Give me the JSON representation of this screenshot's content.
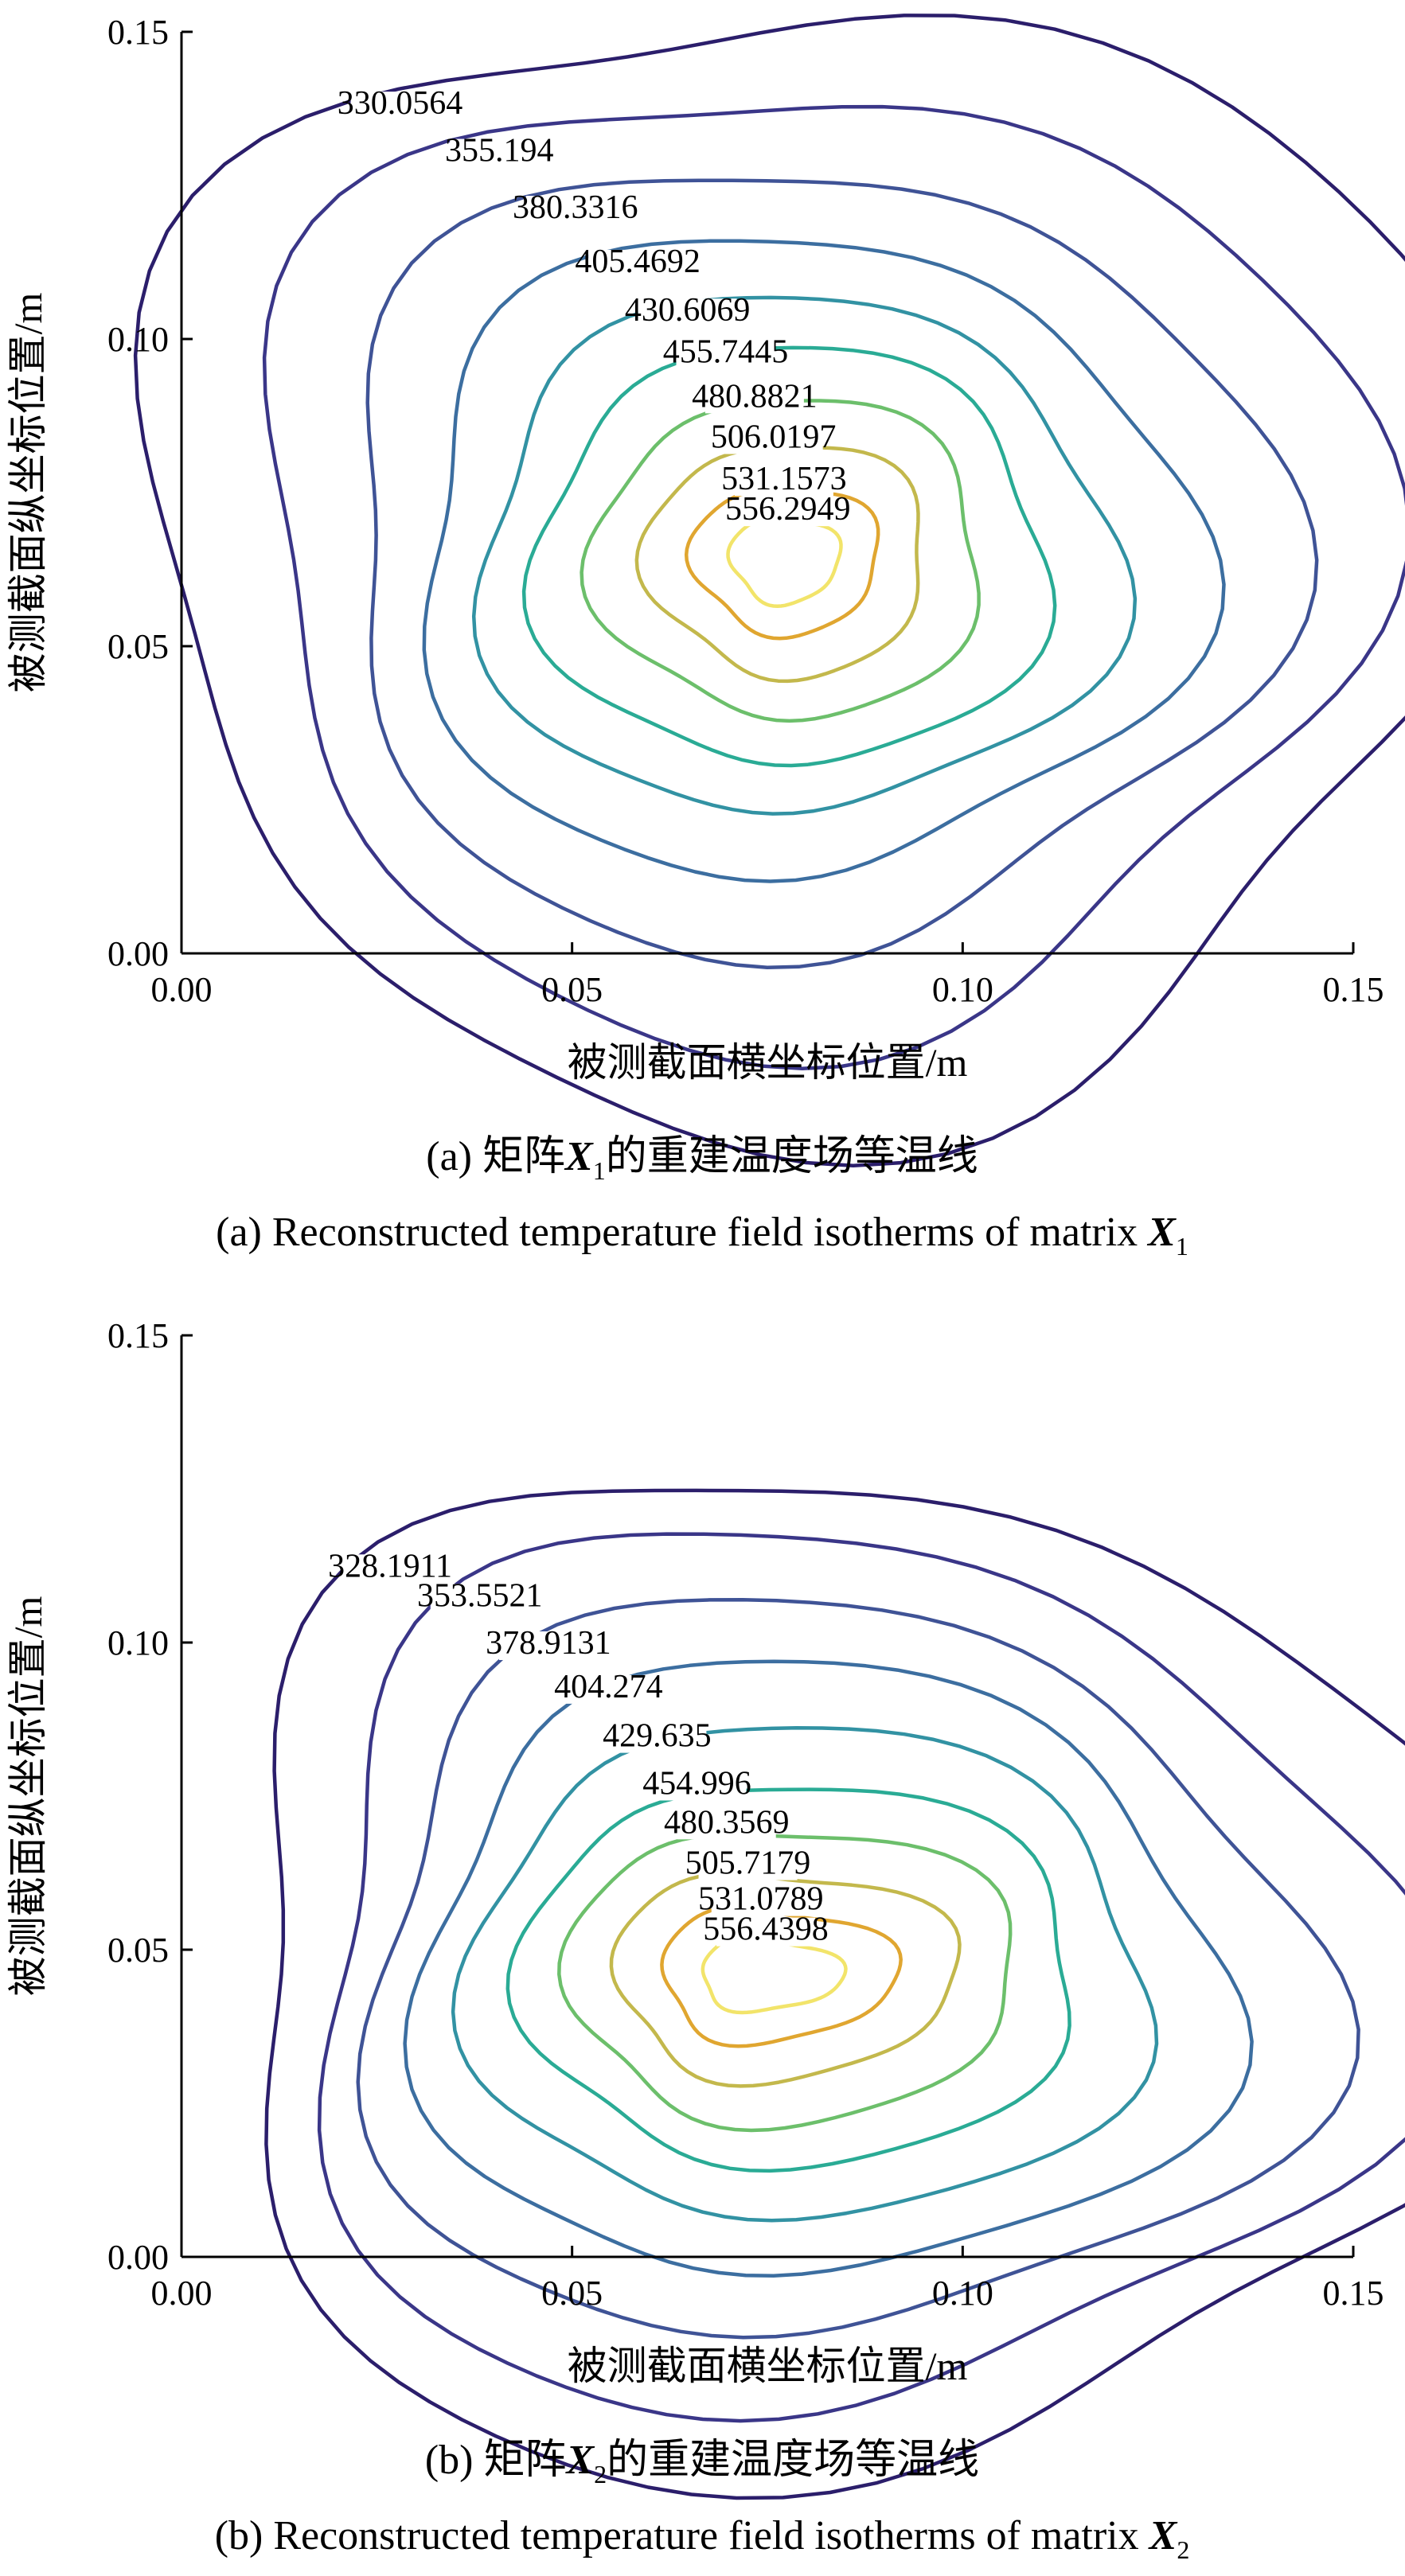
{
  "chart_data": [
    {
      "type": "contour",
      "panel": "a",
      "xlabel": "被测截面横坐标位置/m",
      "ylabel": "被测截面纵坐标位置/m",
      "xlim": [
        0,
        0.15
      ],
      "ylim": [
        0,
        0.15
      ],
      "x_ticks": [
        "0.00",
        "0.05",
        "0.10",
        "0.15"
      ],
      "y_ticks": [
        "0.00",
        "0.05",
        "0.10",
        "0.15"
      ],
      "caption_cn_prefix": "(a) 矩阵",
      "caption_cn_suffix": "的重建温度场等温线",
      "caption_en_prefix": "(a) Reconstructed temperature field isotherms of matrix ",
      "matrix_letter": "X",
      "matrix_sub": "1",
      "center": [
        0.077,
        0.064
      ],
      "max_level": 556.2949,
      "levels": [
        {
          "value": 330.0564,
          "label": "330.0564",
          "color": "#2b1e6b",
          "rx": 0.085,
          "ry": 0.092
        },
        {
          "value": 355.194,
          "label": "355.194",
          "color": "#3a3688",
          "rx": 0.071,
          "ry": 0.078
        },
        {
          "value": 380.3316,
          "label": "380.3316",
          "color": "#3f5396",
          "rx": 0.06,
          "ry": 0.064
        },
        {
          "value": 405.4692,
          "label": "405.4692",
          "color": "#3c6ea0",
          "rx": 0.05,
          "ry": 0.052
        },
        {
          "value": 430.6069,
          "label": "430.6069",
          "color": "#3292a3",
          "rx": 0.041,
          "ry": 0.042
        },
        {
          "value": 455.7445,
          "label": "455.7445",
          "color": "#2aab95",
          "rx": 0.033,
          "ry": 0.034
        },
        {
          "value": 480.8821,
          "label": "480.8821",
          "color": "#6cbf6b",
          "rx": 0.025,
          "ry": 0.026
        },
        {
          "value": 506.0197,
          "label": "506.0197",
          "color": "#c3b84c",
          "rx": 0.018,
          "ry": 0.019
        },
        {
          "value": 531.1573,
          "label": "531.1573",
          "color": "#e0a630",
          "rx": 0.012,
          "ry": 0.012
        },
        {
          "value": 556.2949,
          "label": "556.2949",
          "color": "#f2e46a",
          "rx": 0.007,
          "ry": 0.007
        }
      ]
    },
    {
      "type": "contour",
      "panel": "b",
      "xlabel": "被测截面横坐标位置/m",
      "ylabel": "被测截面纵坐标位置/m",
      "xlim": [
        0,
        0.15
      ],
      "ylim": [
        0,
        0.15
      ],
      "x_ticks": [
        "0.00",
        "0.05",
        "0.10",
        "0.15"
      ],
      "y_ticks": [
        "0.00",
        "0.05",
        "0.10",
        "0.15"
      ],
      "caption_cn_prefix": "(b) 矩阵",
      "caption_cn_suffix": "的重建温度场等温线",
      "caption_en_prefix": "(b) Reconstructed temperature field isotherms of matrix ",
      "matrix_letter": "X",
      "matrix_sub": "2",
      "center": [
        0.074,
        0.046
      ],
      "max_level": 556.4398,
      "levels": [
        {
          "value": 328.1911,
          "label": "328.1911",
          "color": "#2b1e6b",
          "rx": 0.082,
          "ry": 0.082
        },
        {
          "value": 353.5521,
          "label": "353.5521",
          "color": "#3a3688",
          "rx": 0.07,
          "ry": 0.072
        },
        {
          "value": 378.9131,
          "label": "378.9131",
          "color": "#3f5396",
          "rx": 0.061,
          "ry": 0.06
        },
        {
          "value": 404.274,
          "label": "404.274",
          "color": "#3c6ea0",
          "rx": 0.052,
          "ry": 0.05
        },
        {
          "value": 429.635,
          "label": "429.635",
          "color": "#3292a3",
          "rx": 0.044,
          "ry": 0.04
        },
        {
          "value": 454.996,
          "label": "454.996",
          "color": "#2aab95",
          "rx": 0.036,
          "ry": 0.031
        },
        {
          "value": 480.3569,
          "label": "480.3569",
          "color": "#6cbf6b",
          "rx": 0.029,
          "ry": 0.024
        },
        {
          "value": 505.7179,
          "label": "505.7179",
          "color": "#c3b84c",
          "rx": 0.022,
          "ry": 0.017
        },
        {
          "value": 531.0789,
          "label": "531.0789",
          "color": "#e0a630",
          "rx": 0.015,
          "ry": 0.011
        },
        {
          "value": 556.4398,
          "label": "556.4398",
          "color": "#f2e46a",
          "rx": 0.009,
          "ry": 0.006
        }
      ]
    }
  ]
}
